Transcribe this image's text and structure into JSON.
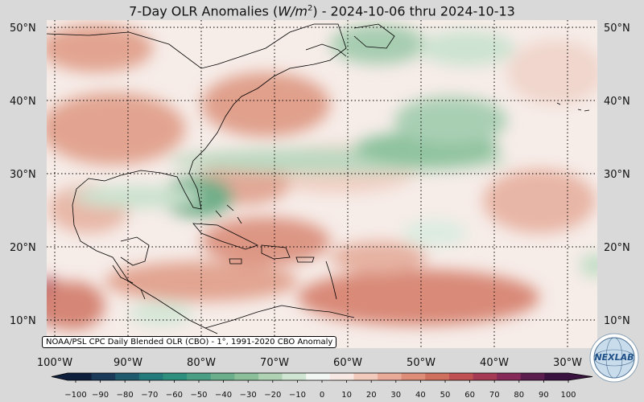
{
  "title": {
    "prefix": "7-Day OLR Anomalies (",
    "unit": "W/m",
    "unit_exp": "2",
    "suffix": ") - 2024-10-06 thru 2024-10-13"
  },
  "lat_labels": [
    "50°N",
    "40°N",
    "30°N",
    "20°N",
    "10°N"
  ],
  "lat_values": [
    50,
    40,
    30,
    20,
    10
  ],
  "lon_labels": [
    "100°W",
    "90°W",
    "80°W",
    "70°W",
    "60°W",
    "50°W",
    "40°W",
    "30°W"
  ],
  "lon_values": [
    -100,
    -90,
    -80,
    -70,
    -60,
    -50,
    -40,
    -30
  ],
  "source_note": "NOAA/PSL CPC Daily Blended OLR (CBO) - 1°, 1991-2020 CBO Anomaly",
  "colorbar": {
    "ticks": [
      -100,
      -90,
      -80,
      -70,
      -60,
      -50,
      -40,
      -30,
      -20,
      -10,
      0,
      10,
      20,
      30,
      40,
      50,
      60,
      70,
      80,
      90,
      100
    ],
    "tick_labels": [
      "−100",
      "−90",
      "−80",
      "−70",
      "−60",
      "−50",
      "−40",
      "−30",
      "−20",
      "−10",
      "0",
      "10",
      "20",
      "30",
      "40",
      "50",
      "60",
      "70",
      "80",
      "90",
      "100"
    ],
    "colors": [
      "#0d1f3c",
      "#1b3a5a",
      "#1f5a6e",
      "#237a7a",
      "#2e8f7e",
      "#4a9e84",
      "#6aae8c",
      "#8bbf9a",
      "#aed2b3",
      "#d0e6d2",
      "#f3f7f3",
      "#f8e8e3",
      "#f2cbbd",
      "#e9ab98",
      "#dd8d78",
      "#cf6f5e",
      "#bf5152",
      "#a53a55",
      "#852a59",
      "#5c1d4f",
      "#3a1240"
    ]
  },
  "logo": {
    "text": "NEXLAB",
    "icon": "globe-logo-icon"
  },
  "map_fields": {
    "positive_anomaly_color": "#e3a392",
    "negative_anomaly_color": "#8fc39f",
    "strong_positive_color": "#b04a5a"
  }
}
